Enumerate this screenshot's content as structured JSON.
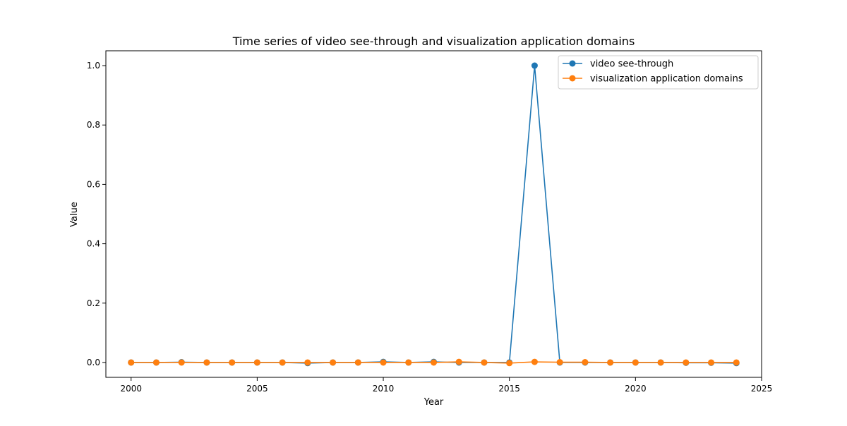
{
  "chart_data": {
    "type": "line",
    "title": "Time series of video see-through and visualization application domains",
    "xlabel": "Year",
    "ylabel": "Value",
    "xlim": [
      1999,
      2025
    ],
    "ylim": [
      -0.05,
      1.05
    ],
    "xticks": [
      2000,
      2005,
      2010,
      2015,
      2020,
      2025
    ],
    "xtick_labels": [
      "2000",
      "2005",
      "2010",
      "2015",
      "2020",
      "2025"
    ],
    "yticks": [
      0.0,
      0.2,
      0.4,
      0.6,
      0.8,
      1.0
    ],
    "ytick_labels": [
      "0.0",
      "0.2",
      "0.4",
      "0.6",
      "0.8",
      "1.0"
    ],
    "grid": false,
    "legend_position": "top-right",
    "x": [
      2000,
      2001,
      2002,
      2003,
      2004,
      2005,
      2006,
      2007,
      2008,
      2009,
      2010,
      2011,
      2012,
      2013,
      2014,
      2015,
      2016,
      2017,
      2018,
      2019,
      2020,
      2021,
      2022,
      2023,
      2024
    ],
    "series": [
      {
        "name": "video see-through",
        "color": "#1f77b4",
        "marker": "circle",
        "values": [
          0.0,
          0.0,
          0.001,
          0.0,
          0.0,
          0.0,
          0.0,
          -0.002,
          0.0,
          0.0,
          0.002,
          0.0,
          0.002,
          0.0,
          0.0,
          0.0,
          1.0,
          0.0,
          0.0,
          0.0,
          0.0,
          0.0,
          -0.001,
          -0.001,
          -0.002
        ]
      },
      {
        "name": "visualization application domains",
        "color": "#ff7f0e",
        "marker": "circle",
        "values": [
          0.0,
          0.0,
          0.0,
          0.0,
          0.0,
          0.0,
          0.0,
          0.0,
          0.0,
          0.0,
          0.0,
          0.0,
          0.0,
          0.002,
          0.0,
          -0.002,
          0.002,
          0.001,
          0.001,
          0.0,
          0.0,
          0.0,
          0.0,
          0.0,
          0.0
        ]
      }
    ]
  }
}
